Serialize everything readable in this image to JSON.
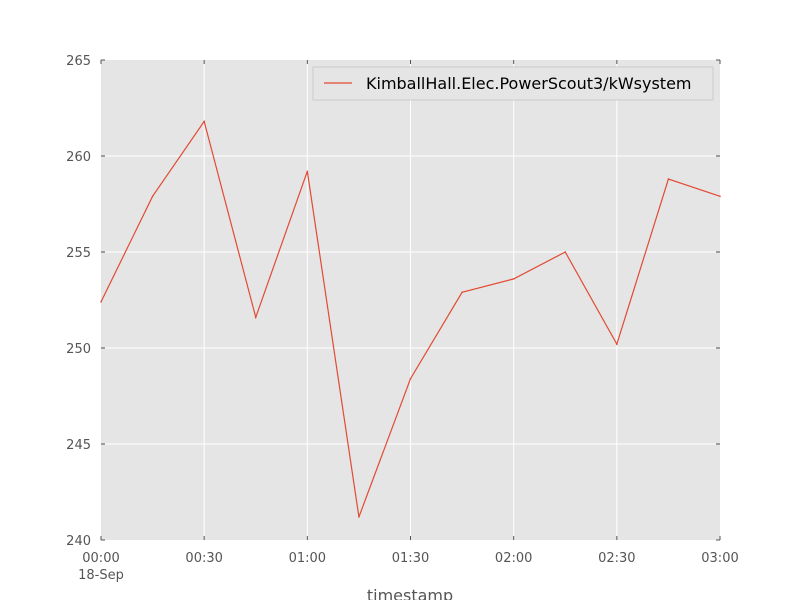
{
  "chart_data": {
    "type": "line",
    "x": [
      "00:00",
      "00:15",
      "00:30",
      "00:45",
      "01:00",
      "01:15",
      "01:30",
      "01:45",
      "02:00",
      "02:15",
      "02:30",
      "02:45",
      "03:00"
    ],
    "series": [
      {
        "name": "KimballHall.Elec.PowerScout3/kWsystem",
        "values": [
          252.4,
          257.9,
          261.8,
          251.6,
          259.2,
          241.2,
          248.4,
          252.9,
          253.6,
          255.0,
          250.2,
          258.8,
          257.9
        ],
        "color": "#e24a33"
      }
    ],
    "xlabel": "timestamp",
    "ylabel": "",
    "ylim": [
      240,
      265
    ],
    "yticks": [
      240,
      245,
      250,
      255,
      260,
      265
    ],
    "xticks": [
      "00:00",
      "00:30",
      "01:00",
      "01:30",
      "02:00",
      "02:30",
      "03:00"
    ],
    "xtick_sublabel": "18-Sep",
    "grid": true,
    "legend_position": "upper-right",
    "colors": {
      "plot_background": "#e5e5e5",
      "grid": "#ffffff",
      "series": "#e24a33"
    }
  }
}
